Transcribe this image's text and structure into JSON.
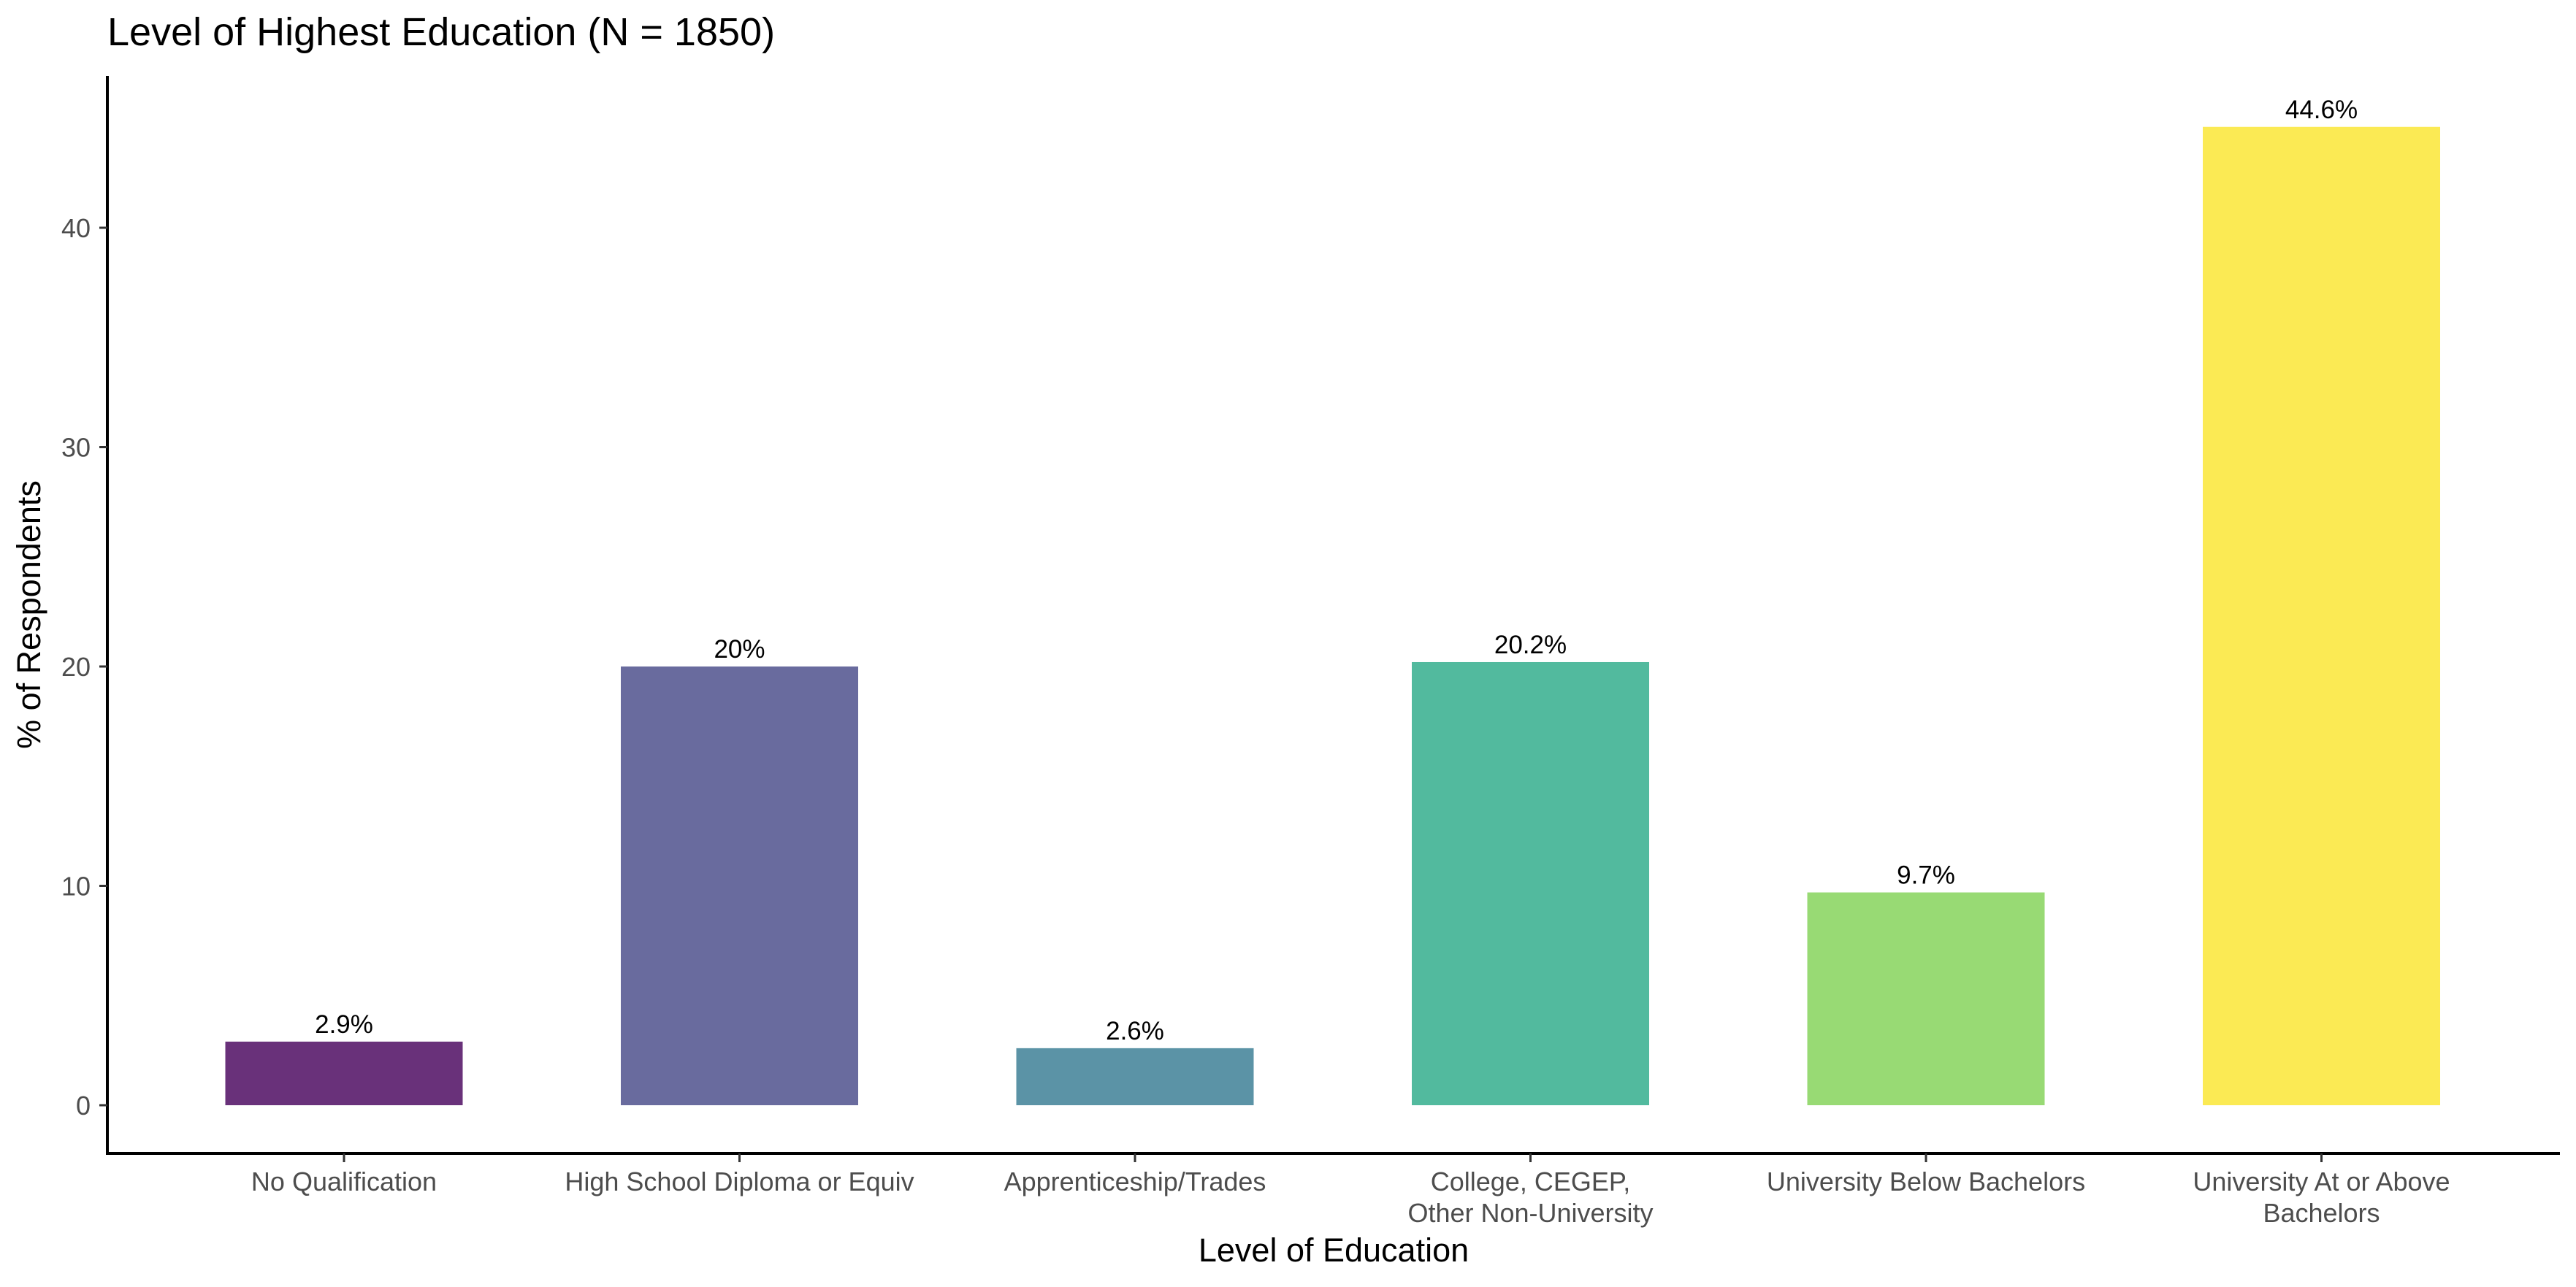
{
  "chart_data": {
    "type": "bar",
    "title": "Level of Highest Education (N = 1850)",
    "xlabel": "Level of Education",
    "ylabel": "% of Respondents",
    "categories": [
      [
        "No Qualification"
      ],
      [
        "High School Diploma or Equiv"
      ],
      [
        "Apprenticeship/Trades"
      ],
      [
        "College, CEGEP,",
        "Other Non-University"
      ],
      [
        "University Below Bachelors"
      ],
      [
        "University At or Above",
        "Bachelors"
      ]
    ],
    "values": [
      2.9,
      20.0,
      2.6,
      20.2,
      9.7,
      44.6
    ],
    "data_labels": [
      "2.9%",
      "20%",
      "2.6%",
      "20.2%",
      "9.7%",
      "44.6%"
    ],
    "colors": [
      "#69317a",
      "#696b9e",
      "#5b93a6",
      "#52ba9e",
      "#98da74",
      "#fbea54"
    ],
    "yticks": [
      0,
      10,
      20,
      30,
      40
    ],
    "ylim": [
      -2.2,
      46.9
    ],
    "grid": false,
    "legend": "none"
  }
}
